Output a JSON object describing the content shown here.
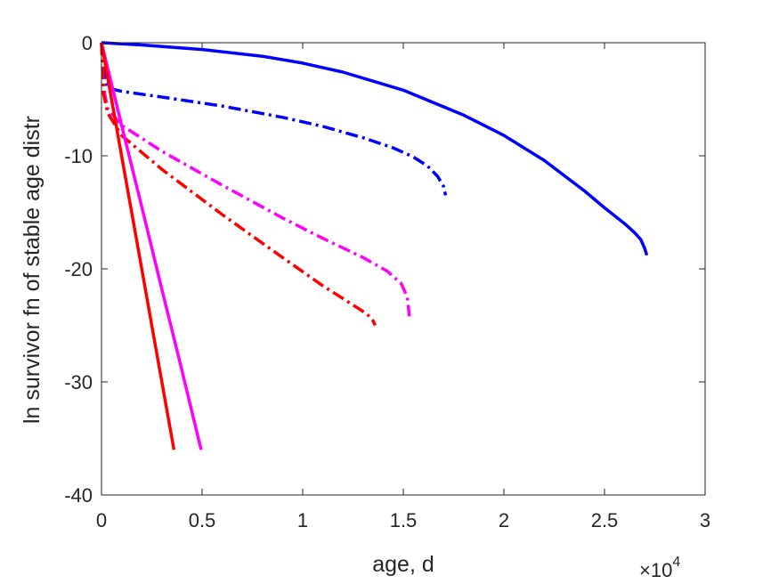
{
  "chart_data": {
    "type": "line",
    "title": "",
    "xlabel": "age, d",
    "ylabel": "ln survivor fn of stable age distr",
    "x_exponent_label": "×10",
    "x_exponent_power": "4",
    "xlim": [
      0,
      30000
    ],
    "ylim": [
      -40,
      0
    ],
    "xticks": [
      0,
      5000,
      10000,
      15000,
      20000,
      25000,
      30000
    ],
    "xtick_labels": [
      "0",
      "0.5",
      "1",
      "1.5",
      "2",
      "2.5",
      "3"
    ],
    "yticks": [
      0,
      -10,
      -20,
      -30,
      -40
    ],
    "ytick_labels": [
      "0",
      "-10",
      "-20",
      "-30",
      "-40"
    ],
    "grid": false,
    "legend": "none",
    "series": [
      {
        "color": "#0000ff",
        "style": "solid",
        "x": [
          0,
          2000,
          5000,
          8000,
          10000,
          12000,
          15000,
          18000,
          20000,
          22000,
          24000,
          25000,
          26000,
          26500,
          26800,
          27000,
          27100
        ],
        "y": [
          0,
          -0.2,
          -0.6,
          -1.2,
          -1.8,
          -2.6,
          -4.2,
          -6.4,
          -8.2,
          -10.4,
          -13.1,
          -14.6,
          -16.0,
          -16.8,
          -17.4,
          -18.2,
          -18.8
        ]
      },
      {
        "color": "#0000ff",
        "style": "dashdot",
        "x": [
          0,
          100,
          300,
          1000,
          3000,
          6000,
          9000,
          11000,
          13000,
          14500,
          15500,
          16200,
          16700,
          17000,
          17100
        ],
        "y": [
          0,
          -2.5,
          -4.0,
          -4.3,
          -4.8,
          -5.6,
          -6.6,
          -7.4,
          -8.4,
          -9.3,
          -10.1,
          -10.9,
          -11.8,
          -12.7,
          -13.5
        ]
      },
      {
        "color": "#ff00ff",
        "style": "dashdot",
        "x": [
          0,
          100,
          300,
          1000,
          3000,
          6000,
          9000,
          11000,
          13000,
          14200,
          14900,
          15200,
          15300
        ],
        "y": [
          0,
          -4.0,
          -5.8,
          -7.3,
          -9.6,
          -12.6,
          -15.5,
          -17.3,
          -19.0,
          -20.2,
          -21.3,
          -22.5,
          -24.2
        ]
      },
      {
        "color": "#ff0000",
        "style": "dashdot",
        "x": [
          0,
          100,
          300,
          1000,
          3000,
          6000,
          9000,
          11000,
          12500,
          13200,
          13500,
          13600
        ],
        "y": [
          0,
          -4.5,
          -6.2,
          -8.2,
          -11.2,
          -15.2,
          -19.0,
          -21.5,
          -23.2,
          -24.0,
          -24.6,
          -25.0
        ]
      },
      {
        "color": "#ff00ff",
        "style": "solid",
        "x": [
          0,
          1000,
          2000,
          3000,
          4000,
          4950
        ],
        "y": [
          0,
          -7.3,
          -14.5,
          -21.8,
          -29.0,
          -36.0
        ]
      },
      {
        "color": "#ff0000",
        "style": "solid",
        "x": [
          0,
          900,
          1800,
          2700,
          3600
        ],
        "y": [
          0,
          -9.0,
          -18.0,
          -27.0,
          -36.0
        ]
      }
    ]
  }
}
